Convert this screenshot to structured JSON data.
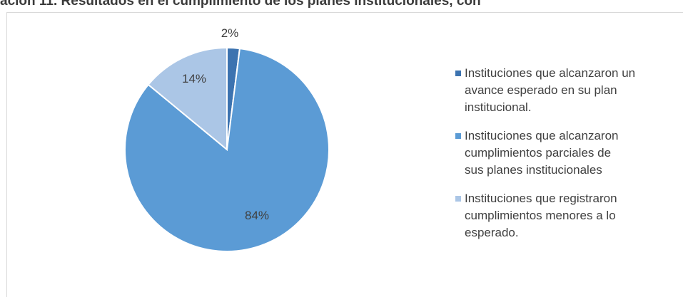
{
  "chart_data": {
    "type": "pie",
    "title": "ación 11. Resultados en el cumplimiento de los planes institucionales, con",
    "labels": [
      "Instituciones que alcanzaron un avance esperado en su plan institucional.",
      "Instituciones que alcanzaron cumplimientos parciales de sus planes institucionales",
      "Instituciones que registraron cumplimientos menores a lo esperado."
    ],
    "legend_lines": [
      [
        "Instituciones que alcanzaron un",
        "avance esperado en su plan",
        "institucional."
      ],
      [
        "Instituciones que alcanzaron",
        "cumplimientos parciales de",
        "sus planes institucionales"
      ],
      [
        "Instituciones que registraron",
        "cumplimientos menores a lo",
        "esperado."
      ]
    ],
    "values": [
      2,
      84,
      14
    ],
    "data_labels": [
      "2%",
      "84%",
      "14%"
    ],
    "colors": [
      "#3c73b0",
      "#5b9bd5",
      "#abc6e6"
    ],
    "legend_position": "right"
  }
}
